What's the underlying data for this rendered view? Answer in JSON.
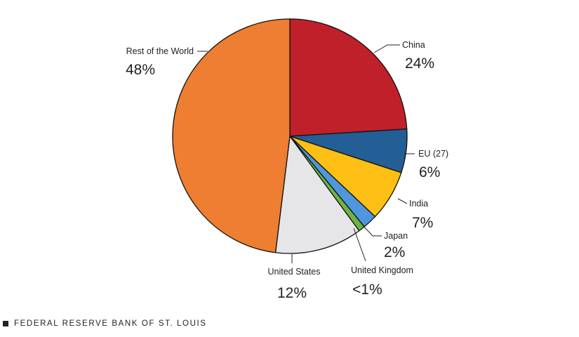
{
  "chart_data": {
    "type": "pie",
    "title": "",
    "slices": [
      {
        "label": "China",
        "value": 24,
        "display": "24%",
        "color": "#C0202A"
      },
      {
        "label": "EU (27)",
        "value": 6,
        "display": "6%",
        "color": "#235E94"
      },
      {
        "label": "India",
        "value": 7,
        "display": "7%",
        "color": "#FDBF13"
      },
      {
        "label": "Japan",
        "value": 2,
        "display": "2%",
        "color": "#4F96DC"
      },
      {
        "label": "United Kingdom",
        "value": 0.9,
        "display": "<1%",
        "color": "#6EB443"
      },
      {
        "label": "United States",
        "value": 12,
        "display": "12%",
        "color": "#E6E6E9"
      },
      {
        "label": "Rest of the World",
        "value": 48,
        "display": "48%",
        "color": "#EE7E31"
      }
    ]
  },
  "footer": {
    "source": "FEDERAL RESERVE BANK OF ST. LOUIS"
  }
}
